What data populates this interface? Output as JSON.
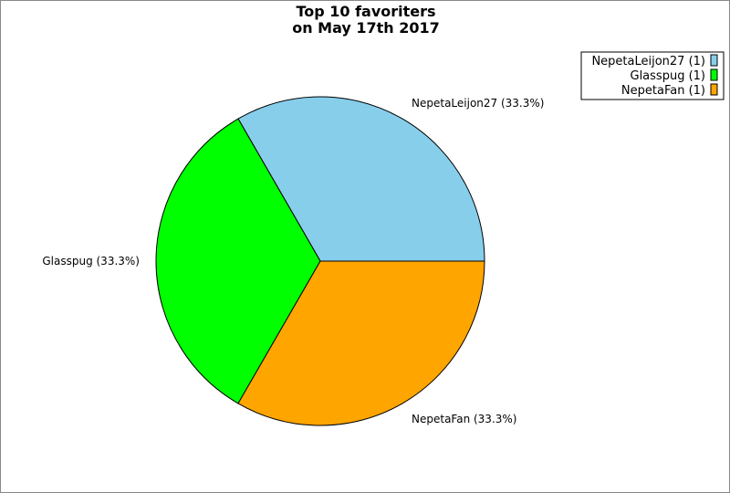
{
  "chart_data": {
    "type": "pie",
    "title": "Top 10 favoriters\non May 17th 2017",
    "title_lines": [
      "Top 10 favoriters",
      "on May 17th 2017"
    ],
    "slices": [
      {
        "label": "NepetaLeijon27",
        "value": 1,
        "percent_label": "NepetaLeijon27 (33.3%)",
        "legend_label": "NepetaLeijon27 (1)",
        "color": "#87ceeb"
      },
      {
        "label": "Glasspug",
        "value": 1,
        "percent_label": "Glasspug (33.3%)",
        "legend_label": "Glasspug (1)",
        "color": "#00ff00"
      },
      {
        "label": "NepetaFan",
        "value": 1,
        "percent_label": "NepetaFan (33.3%)",
        "legend_label": "NepetaFan (1)",
        "color": "#ffa500"
      }
    ],
    "start_angle_deg": 0,
    "direction": "counterclockwise",
    "legend_position": "top-right"
  }
}
